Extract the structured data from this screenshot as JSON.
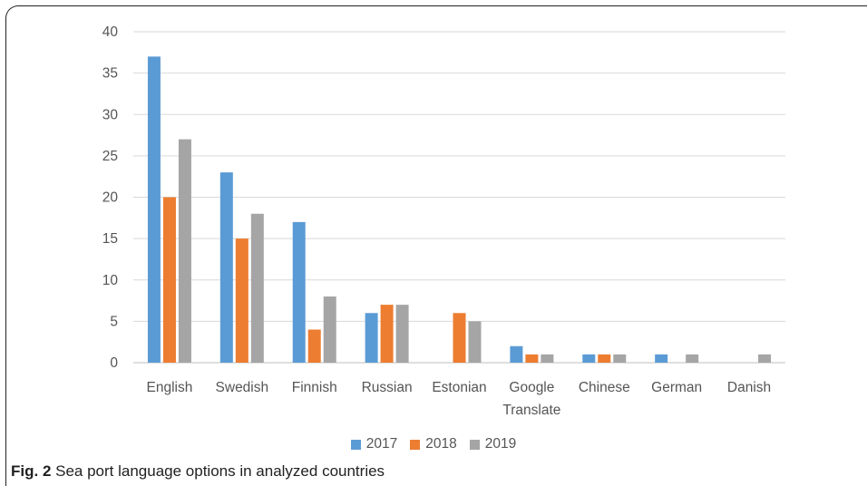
{
  "chart_data": {
    "type": "bar",
    "categories": [
      "English",
      "Swedish",
      "Finnish",
      "Russian",
      "Estonian",
      "Google Translate",
      "Chinese",
      "German",
      "Danish"
    ],
    "category_lines": [
      [
        "English"
      ],
      [
        "Swedish"
      ],
      [
        "Finnish"
      ],
      [
        "Russian"
      ],
      [
        "Estonian"
      ],
      [
        "Google",
        "Translate"
      ],
      [
        "Chinese"
      ],
      [
        "German"
      ],
      [
        "Danish"
      ]
    ],
    "series": [
      {
        "name": "2017",
        "color": "#5B9BD5",
        "values": [
          37,
          23,
          17,
          6,
          0,
          2,
          1,
          1,
          0
        ]
      },
      {
        "name": "2018",
        "color": "#ED7D31",
        "values": [
          20,
          15,
          4,
          7,
          6,
          1,
          1,
          0,
          0
        ]
      },
      {
        "name": "2019",
        "color": "#A5A5A5",
        "values": [
          27,
          18,
          8,
          7,
          5,
          1,
          1,
          1,
          1
        ]
      }
    ],
    "ylim": [
      0,
      40
    ],
    "yticks": [
      0,
      5,
      10,
      15,
      20,
      25,
      30,
      35,
      40
    ],
    "grid": true,
    "legend_position": "bottom"
  },
  "caption": {
    "label": "Fig. 2",
    "text": " Sea port language options in analyzed countries"
  }
}
